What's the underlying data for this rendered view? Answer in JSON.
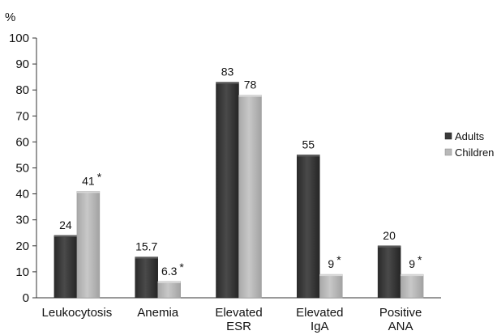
{
  "chart_data": {
    "type": "bar",
    "ylabel": "%",
    "ylim": [
      0,
      100
    ],
    "yticks": [
      0,
      10,
      20,
      30,
      40,
      50,
      60,
      70,
      80,
      90,
      100
    ],
    "grid": false,
    "legend_position": "right",
    "categories": [
      [
        "Leukocytosis"
      ],
      [
        "Anemia"
      ],
      [
        "Elevated",
        "ESR"
      ],
      [
        "Elevated",
        "IgA"
      ],
      [
        "Positive",
        "ANA"
      ]
    ],
    "series": [
      {
        "name": "Adults",
        "color": "#3a3a3a",
        "values": [
          24,
          15.7,
          83,
          55,
          20
        ],
        "labels": [
          "24",
          "15.7",
          "83",
          "55",
          "20"
        ],
        "significant": [
          false,
          false,
          false,
          false,
          false
        ]
      },
      {
        "name": "Children",
        "color": "#b8b8b8",
        "values": [
          41,
          6.3,
          78,
          9,
          9
        ],
        "labels": [
          "41",
          "6.3",
          "78",
          "9",
          "9"
        ],
        "significant": [
          true,
          true,
          false,
          true,
          true
        ]
      }
    ],
    "significance_marker": "*"
  }
}
